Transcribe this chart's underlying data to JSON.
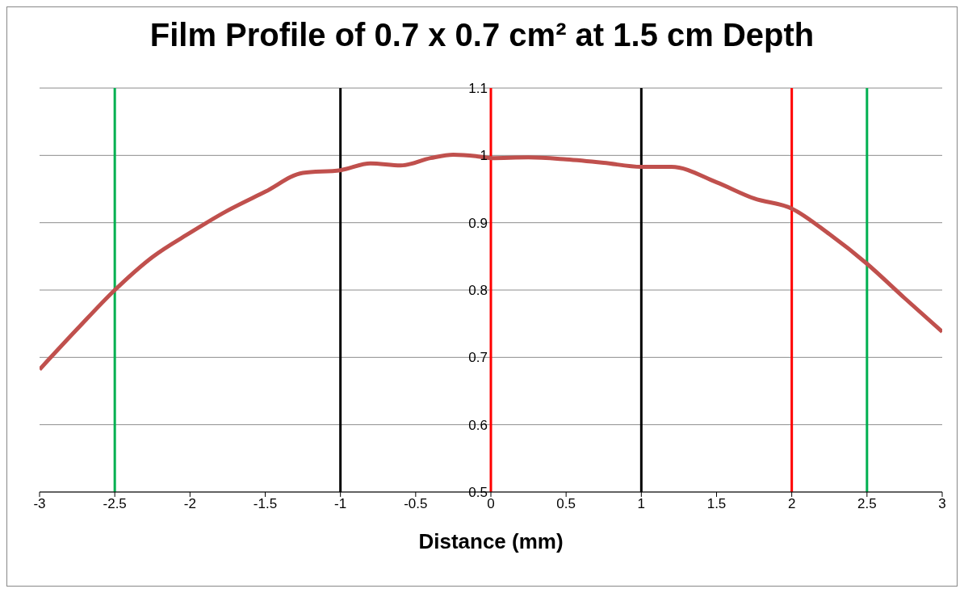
{
  "chart_data": {
    "type": "line",
    "title": "Film Profile of 0.7 x 0.7 cm² at 1.5 cm Depth",
    "xlabel": "Distance (mm)",
    "series": [
      {
        "color": "#c0504d",
        "x": [
          -3,
          -2.75,
          -2.5,
          -2.25,
          -2,
          -1.75,
          -1.5,
          -1.25,
          -1,
          -0.8,
          -0.6,
          -0.4,
          -0.25,
          -0.1,
          0,
          0.25,
          0.5,
          0.75,
          1,
          1.2,
          1.5,
          1.75,
          2,
          2.25,
          2.5,
          2.75,
          3
        ],
        "values": [
          0.682,
          0.742,
          0.8,
          0.849,
          0.885,
          0.918,
          0.946,
          0.974,
          0.978,
          0.988,
          0.985,
          0.996,
          1.001,
          0.999,
          0.996,
          0.997,
          0.994,
          0.989,
          0.983,
          0.983,
          0.96,
          0.936,
          0.921,
          0.883,
          0.839,
          0.788,
          0.738
        ]
      }
    ],
    "xlim": [
      -3,
      3
    ],
    "xticks": [
      -3,
      -2.5,
      -2,
      -1.5,
      -1,
      -0.5,
      0,
      0.5,
      1,
      1.5,
      2,
      2.5,
      3
    ],
    "ylim": [
      0.5,
      1.1
    ],
    "yticks": [
      0.5,
      0.6,
      0.7,
      0.8,
      0.9,
      1,
      1.1
    ],
    "grid": "y",
    "marker": "none",
    "line_style": "solid",
    "ref_lines": [
      {
        "axis": "x",
        "value": -2.5,
        "color": "#00b050"
      },
      {
        "axis": "x",
        "value": -1,
        "color": "#000000"
      },
      {
        "axis": "x",
        "value": 0,
        "color": "#ff0000"
      },
      {
        "axis": "x",
        "value": 1,
        "color": "#000000"
      },
      {
        "axis": "x",
        "value": 2,
        "color": "#ff0000"
      },
      {
        "axis": "x",
        "value": 2.5,
        "color": "#00b050"
      }
    ]
  }
}
